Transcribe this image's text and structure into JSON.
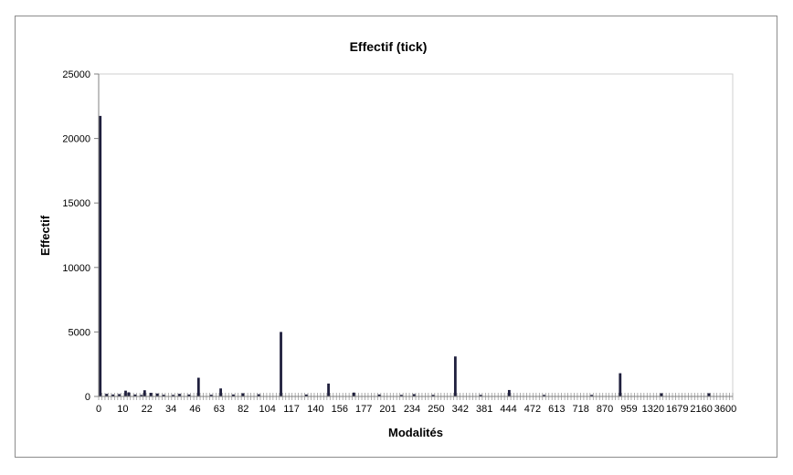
{
  "chart_data": {
    "type": "bar",
    "title": "Effectif (tick)",
    "xlabel": "Modalités",
    "ylabel": "Effectif",
    "ylim": [
      0,
      25000
    ],
    "yticks": [
      "0",
      "5000",
      "10000",
      "15000",
      "20000",
      "25000"
    ],
    "ytick_values": [
      0,
      5000,
      10000,
      15000,
      20000,
      25000
    ],
    "xtick_labels": [
      "0",
      "10",
      "22",
      "34",
      "46",
      "63",
      "82",
      "104",
      "117",
      "140",
      "156",
      "177",
      "201",
      "234",
      "250",
      "342",
      "381",
      "444",
      "472",
      "613",
      "718",
      "870",
      "959",
      "1320",
      "1679",
      "2160",
      "3600"
    ],
    "grid": false,
    "legend": "none",
    "bar_color": "#1f1f3d",
    "category_count": 200,
    "bars": [
      {
        "index": 0,
        "value": 21750
      },
      {
        "index": 2,
        "value": 200
      },
      {
        "index": 4,
        "value": 150
      },
      {
        "index": 6,
        "value": 180
      },
      {
        "index": 8,
        "value": 450
      },
      {
        "index": 9,
        "value": 320
      },
      {
        "index": 11,
        "value": 150
      },
      {
        "index": 13,
        "value": 120
      },
      {
        "index": 14,
        "value": 480
      },
      {
        "index": 16,
        "value": 280
      },
      {
        "index": 18,
        "value": 230
      },
      {
        "index": 20,
        "value": 130
      },
      {
        "index": 23,
        "value": 120
      },
      {
        "index": 25,
        "value": 200
      },
      {
        "index": 28,
        "value": 150
      },
      {
        "index": 31,
        "value": 1450
      },
      {
        "index": 35,
        "value": 130
      },
      {
        "index": 38,
        "value": 620
      },
      {
        "index": 42,
        "value": 150
      },
      {
        "index": 45,
        "value": 250
      },
      {
        "index": 50,
        "value": 170
      },
      {
        "index": 57,
        "value": 5000
      },
      {
        "index": 65,
        "value": 150
      },
      {
        "index": 72,
        "value": 1000
      },
      {
        "index": 80,
        "value": 300
      },
      {
        "index": 88,
        "value": 150
      },
      {
        "index": 95,
        "value": 120
      },
      {
        "index": 99,
        "value": 180
      },
      {
        "index": 105,
        "value": 120
      },
      {
        "index": 112,
        "value": 3100
      },
      {
        "index": 120,
        "value": 120
      },
      {
        "index": 129,
        "value": 500
      },
      {
        "index": 140,
        "value": 120
      },
      {
        "index": 155,
        "value": 120
      },
      {
        "index": 164,
        "value": 1800
      },
      {
        "index": 177,
        "value": 250
      },
      {
        "index": 192,
        "value": 250
      }
    ]
  }
}
